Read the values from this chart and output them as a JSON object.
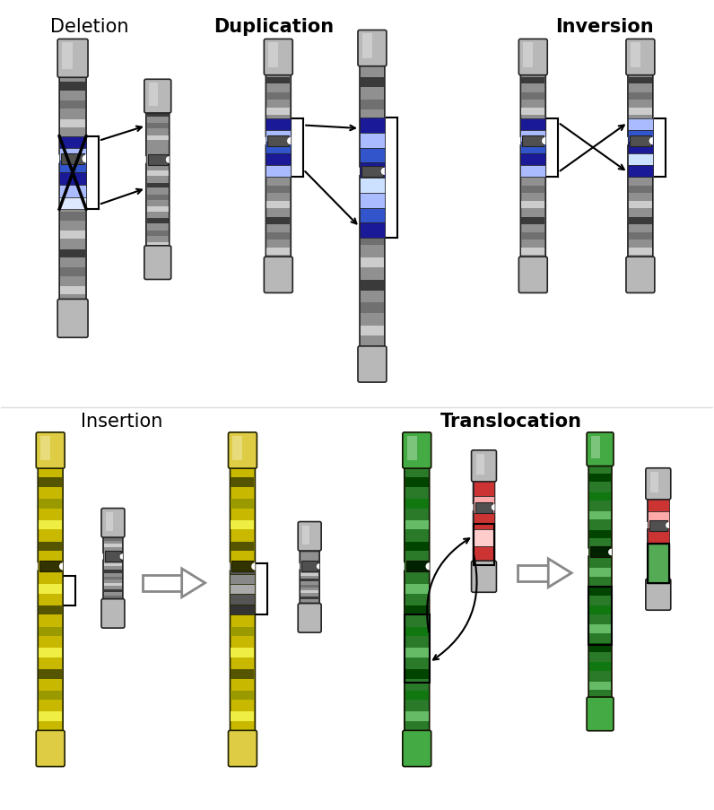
{
  "labels": {
    "deletion": "Deletion",
    "duplication": "Duplication",
    "inversion": "Inversion",
    "insertion": "Insertion",
    "translocation": "Translocation"
  },
  "colors": {
    "bg": "#ffffff",
    "chrom_body": "#888888",
    "chrom_light_band": "#cccccc",
    "chrom_dark_band": "#333333",
    "chrom_mid_band": "#666666",
    "chrom_cap": "#aaaaaa",
    "chrom_edge": "#222222",
    "blue_dark": "#1a1a99",
    "blue_mid": "#3355cc",
    "blue_light": "#aabbff",
    "blue_pale": "#dde8ff",
    "blue_white": "#cce0ff",
    "green_dark": "#005500",
    "green_mid": "#228822",
    "green_light": "#55aa55",
    "red_dark": "#990000",
    "red_mid": "#cc3333",
    "red_light": "#ffaaaa",
    "red_pale": "#ffcccc",
    "yellow_dark": "#888800",
    "yellow_mid": "#aaaa00",
    "yellow_light": "#dddd00",
    "yellow_pale": "#ffff88",
    "black": "#000000",
    "gray_arrow": "#888888"
  }
}
